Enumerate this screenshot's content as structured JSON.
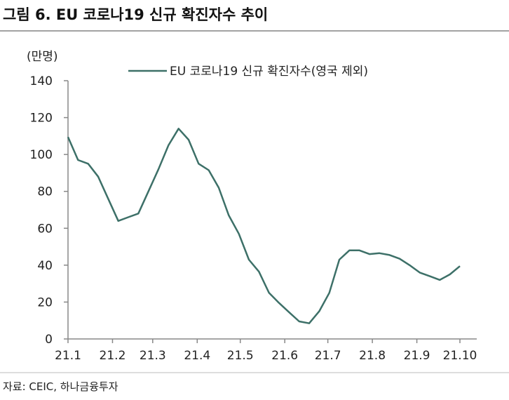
{
  "figure_title": "그림 6. EU 코로나19 신규 확진자수 추이",
  "source": "자료: CEIC, 하나금융투자",
  "chart_data": {
    "type": "line",
    "title": "그림 6. EU 코로나19 신규 확진자수 추이",
    "ylabel": "(만명)",
    "xlabel": "",
    "ylim": [
      0,
      140
    ],
    "yticks": [
      0,
      20,
      40,
      60,
      80,
      100,
      120,
      140
    ],
    "xlim": [
      "2021-01-01",
      "2021-10-01"
    ],
    "xticks": [
      {
        "date": "2021-01-01",
        "label": "21.1"
      },
      {
        "date": "2021-02-01",
        "label": "21.2"
      },
      {
        "date": "2021-03-01",
        "label": "21.3"
      },
      {
        "date": "2021-04-01",
        "label": "21.4"
      },
      {
        "date": "2021-05-01",
        "label": "21.5"
      },
      {
        "date": "2021-06-01",
        "label": "21.6"
      },
      {
        "date": "2021-07-01",
        "label": "21.7"
      },
      {
        "date": "2021-08-01",
        "label": "21.8"
      },
      {
        "date": "2021-09-01",
        "label": "21.9"
      },
      {
        "date": "2021-10-01",
        "label": "21.10"
      }
    ],
    "grid": false,
    "legend_position": "top-right",
    "series": [
      {
        "name": "EU 코로나19 신규 확진자수(영국 제외)",
        "color": "#3d7068",
        "start_date": "2021-01-01",
        "interval": "weekly",
        "values": [
          109.5,
          97,
          95,
          88,
          76,
          64,
          66,
          68,
          80,
          92,
          105,
          114,
          108,
          95,
          91.5,
          82,
          67,
          57,
          43,
          36.5,
          25,
          19.5,
          14.5,
          9.5,
          8.5,
          15,
          25,
          43,
          48,
          48,
          46,
          46.5,
          45.5,
          43.5,
          40,
          36,
          34,
          32,
          35,
          39.5
        ]
      }
    ]
  }
}
